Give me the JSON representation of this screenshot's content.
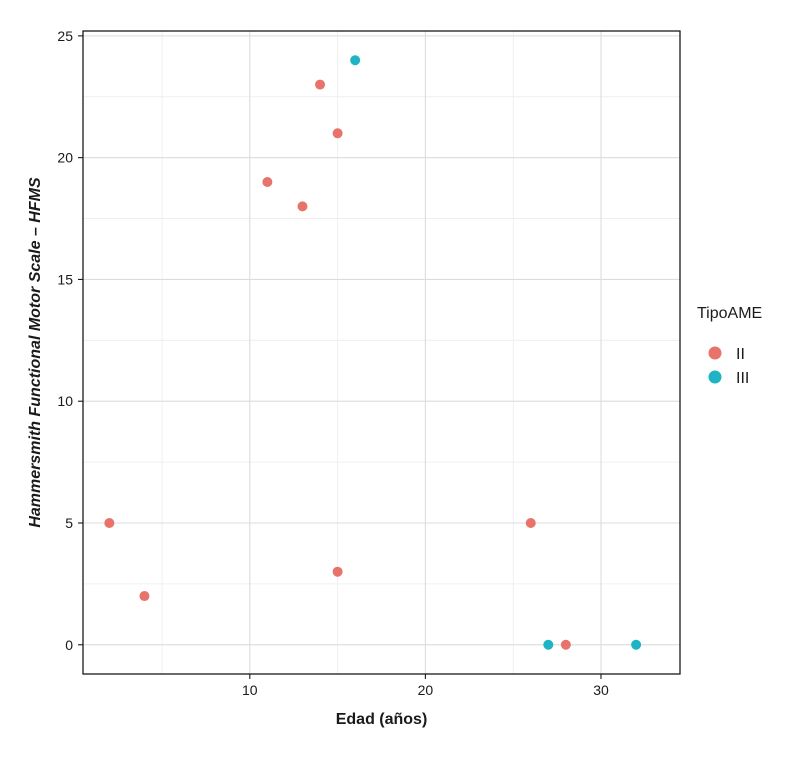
{
  "chart_data": {
    "type": "scatter",
    "title": "",
    "xlabel": "Edad (años)",
    "ylabel": "Hammersmith Functional Motor Scale – HFMS",
    "xlim": [
      0.5,
      34.5
    ],
    "ylim": [
      -1.2,
      25.2
    ],
    "xticks": [
      10,
      20,
      30
    ],
    "xtick_labels": [
      "10",
      "20",
      "30"
    ],
    "yticks": [
      0,
      5,
      10,
      15,
      20,
      25
    ],
    "ytick_labels": [
      "0",
      "5",
      "10",
      "15",
      "20",
      "25"
    ],
    "grid": true,
    "legend": {
      "title": "TipoAME",
      "placement": "right",
      "entries": [
        {
          "label": "II",
          "color": "#E8736B"
        },
        {
          "label": "III",
          "color": "#1EB4C4"
        }
      ]
    },
    "series": [
      {
        "name": "II",
        "color": "#E8736B",
        "points": [
          {
            "x": 2,
            "y": 5
          },
          {
            "x": 4,
            "y": 2
          },
          {
            "x": 11,
            "y": 19
          },
          {
            "x": 13,
            "y": 18
          },
          {
            "x": 14,
            "y": 23
          },
          {
            "x": 15,
            "y": 21
          },
          {
            "x": 15,
            "y": 3
          },
          {
            "x": 26,
            "y": 5
          },
          {
            "x": 28,
            "y": 0
          }
        ]
      },
      {
        "name": "III",
        "color": "#1EB4C4",
        "points": [
          {
            "x": 16,
            "y": 24
          },
          {
            "x": 27,
            "y": 0
          },
          {
            "x": 32,
            "y": 0
          }
        ]
      }
    ]
  }
}
